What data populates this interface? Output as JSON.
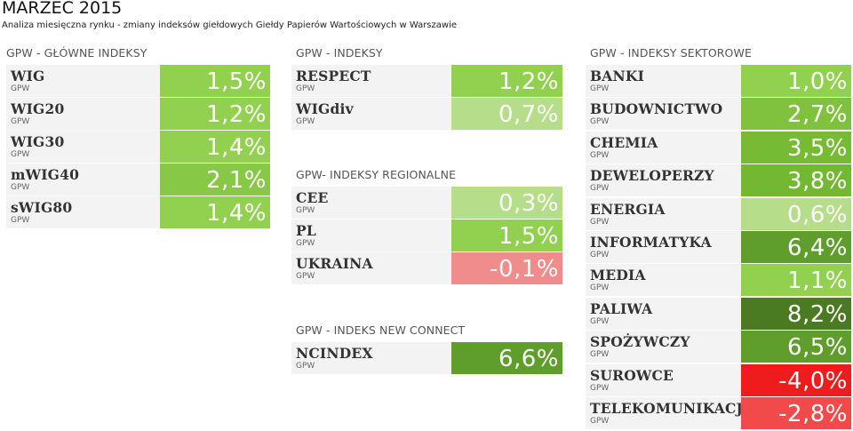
{
  "header": {
    "title": "MARZEC 2015",
    "subtitle": "Analiza miesięczna rynku - zmiany indeksów giełdowych Giełdy Papierów Wartościowych w Warszawie"
  },
  "main_indices": {
    "heading": "GPW - GŁÓWNE INDEKSY",
    "items": [
      {
        "name": "WIG",
        "source": "GPW",
        "value": "1,5%",
        "color": "#92d050",
        "text_color": "#ffffff"
      },
      {
        "name": "WIG20",
        "source": "GPW",
        "value": "1,2%",
        "color": "#92d050",
        "text_color": "#ffffff"
      },
      {
        "name": "WIG30",
        "source": "GPW",
        "value": "1,4%",
        "color": "#92d050",
        "text_color": "#ffffff"
      },
      {
        "name": "mWIG40",
        "source": "GPW",
        "value": "2,1%",
        "color": "#87c846",
        "text_color": "#ffffff"
      },
      {
        "name": "sWIG80",
        "source": "GPW",
        "value": "1,4%",
        "color": "#92d050",
        "text_color": "#ffffff"
      }
    ]
  },
  "indices": {
    "heading": "GPW - INDEKSY",
    "items": [
      {
        "name": "RESPECT",
        "source": "GPW",
        "value": "1,2%",
        "color": "#92d050",
        "text_color": "#ffffff"
      },
      {
        "name": "WIGdiv",
        "source": "GPW",
        "value": "0,7%",
        "color": "#b6dd8a",
        "text_color": "#ffffff"
      }
    ]
  },
  "regional": {
    "heading": "GPW- INDEKSY REGIONALNE",
    "items": [
      {
        "name": "CEE",
        "source": "GPW",
        "value": "0,3%",
        "color": "#b6dd8a",
        "text_color": "#ffffff"
      },
      {
        "name": "PL",
        "source": "GPW",
        "value": "1,5%",
        "color": "#92d050",
        "text_color": "#ffffff"
      },
      {
        "name": "UKRAINA",
        "source": "GPW",
        "value": "-0,1%",
        "color": "#f08c8c",
        "text_color": "#ffffff"
      }
    ]
  },
  "new_connect": {
    "heading": "GPW - INDEKS NEW CONNECT",
    "items": [
      {
        "name": "NCINDEX",
        "source": "GPW",
        "value": "6,6%",
        "color": "#5f9e2c",
        "text_color": "#ffffff"
      }
    ]
  },
  "sector": {
    "heading": "GPW - INDEKSY SEKTOROWE",
    "items": [
      {
        "name": "BANKI",
        "source": "GPW",
        "value": "1,0%",
        "color": "#92d050",
        "text_color": "#ffffff"
      },
      {
        "name": "BUDOWNICTWO",
        "source": "GPW",
        "value": "2,7%",
        "color": "#80c13d",
        "text_color": "#ffffff"
      },
      {
        "name": "CHEMIA",
        "source": "GPW",
        "value": "3,5%",
        "color": "#77bb35",
        "text_color": "#ffffff"
      },
      {
        "name": "DEWELOPERZY",
        "source": "GPW",
        "value": "3,8%",
        "color": "#72b832",
        "text_color": "#ffffff"
      },
      {
        "name": "ENERGIA",
        "source": "GPW",
        "value": "0,6%",
        "color": "#b6dd8a",
        "text_color": "#ffffff"
      },
      {
        "name": "INFORMATYKA",
        "source": "GPW",
        "value": "6,4%",
        "color": "#5f9e2c",
        "text_color": "#ffffff"
      },
      {
        "name": "MEDIA",
        "source": "GPW",
        "value": "1,1%",
        "color": "#92d050",
        "text_color": "#ffffff"
      },
      {
        "name": "PALIWA",
        "source": "GPW",
        "value": "8,2%",
        "color": "#4a7a22",
        "text_color": "#ffffff"
      },
      {
        "name": "SPOŻYWCZY",
        "source": "GPW",
        "value": "6,5%",
        "color": "#5f9e2c",
        "text_color": "#ffffff"
      },
      {
        "name": "SUROWCE",
        "source": "GPW",
        "value": "-4,0%",
        "color": "#ee1c1c",
        "text_color": "#ffffff"
      },
      {
        "name": "TELEKOMUNIKACJA",
        "source": "GPW",
        "value": "-2,8%",
        "color": "#f24a4a",
        "text_color": "#ffffff"
      }
    ]
  }
}
